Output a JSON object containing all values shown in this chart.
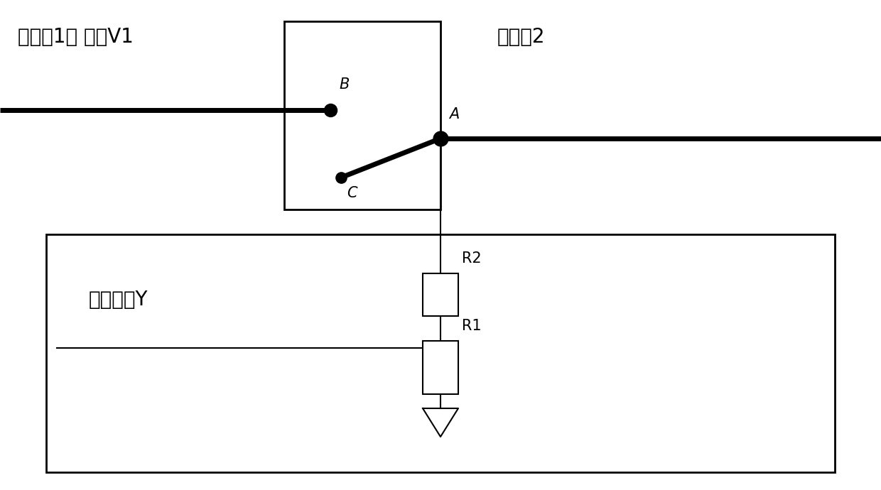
{
  "background_color": "#ffffff",
  "line_color": "#000000",
  "lw_thick": 5,
  "lw_med": 2.0,
  "lw_thin": 1.5,
  "text_spacecraft1": "航天剘1： 电压V1",
  "text_spacecraft2": "航天剘2",
  "text_label_B": "B",
  "text_label_A": "A",
  "text_label_C": "C",
  "text_label_R2": "R2",
  "text_label_R1": "R1",
  "text_output": "状态输出Y",
  "font_size_large": 20,
  "font_size_medium": 16,
  "font_size_label": 15
}
